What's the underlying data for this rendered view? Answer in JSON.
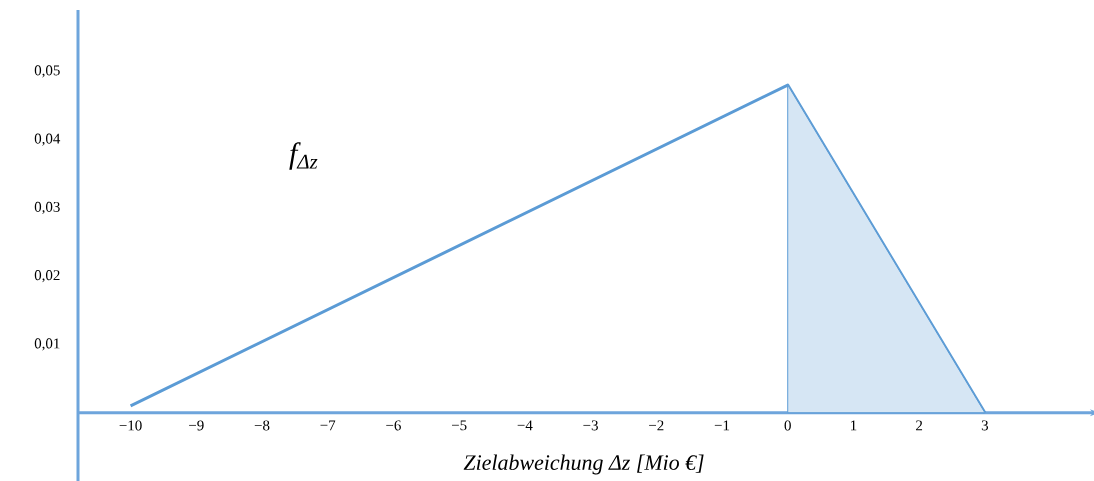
{
  "chart_data": {
    "type": "line",
    "xlabel": "Zielabweichung Δz [Mio €]",
    "xlim": [
      -10.8,
      4.6
    ],
    "ylim": [
      -0.01,
      0.059
    ],
    "xticks": [
      {
        "value": -10,
        "label": "−10"
      },
      {
        "value": -9,
        "label": "−9"
      },
      {
        "value": -8,
        "label": "−8"
      },
      {
        "value": -7,
        "label": "−7"
      },
      {
        "value": -6,
        "label": "−6"
      },
      {
        "value": -5,
        "label": "−5"
      },
      {
        "value": -4,
        "label": "−4"
      },
      {
        "value": -3,
        "label": "−3"
      },
      {
        "value": -2,
        "label": "−2"
      },
      {
        "value": -1,
        "label": "−1"
      },
      0,
      1,
      2,
      3
    ],
    "yticks": [
      {
        "value": 0.01,
        "label": "0,01"
      },
      {
        "value": 0.02,
        "label": "0,02"
      },
      {
        "value": 0.03,
        "label": "0,03"
      },
      {
        "value": 0.04,
        "label": "0,04"
      },
      {
        "value": 0.05,
        "label": "0,05"
      }
    ],
    "series": [
      {
        "name": "f$_{Δz}$",
        "type": "line",
        "color": "#5b9bd5",
        "x": [
          -10,
          0,
          3
        ],
        "values": [
          0.001,
          0.048,
          0
        ]
      },
      {
        "type": "area",
        "color": "#5b9bd5",
        "x": [
          0,
          3
        ],
        "values": [
          0.048,
          0
        ]
      }
    ]
  }
}
